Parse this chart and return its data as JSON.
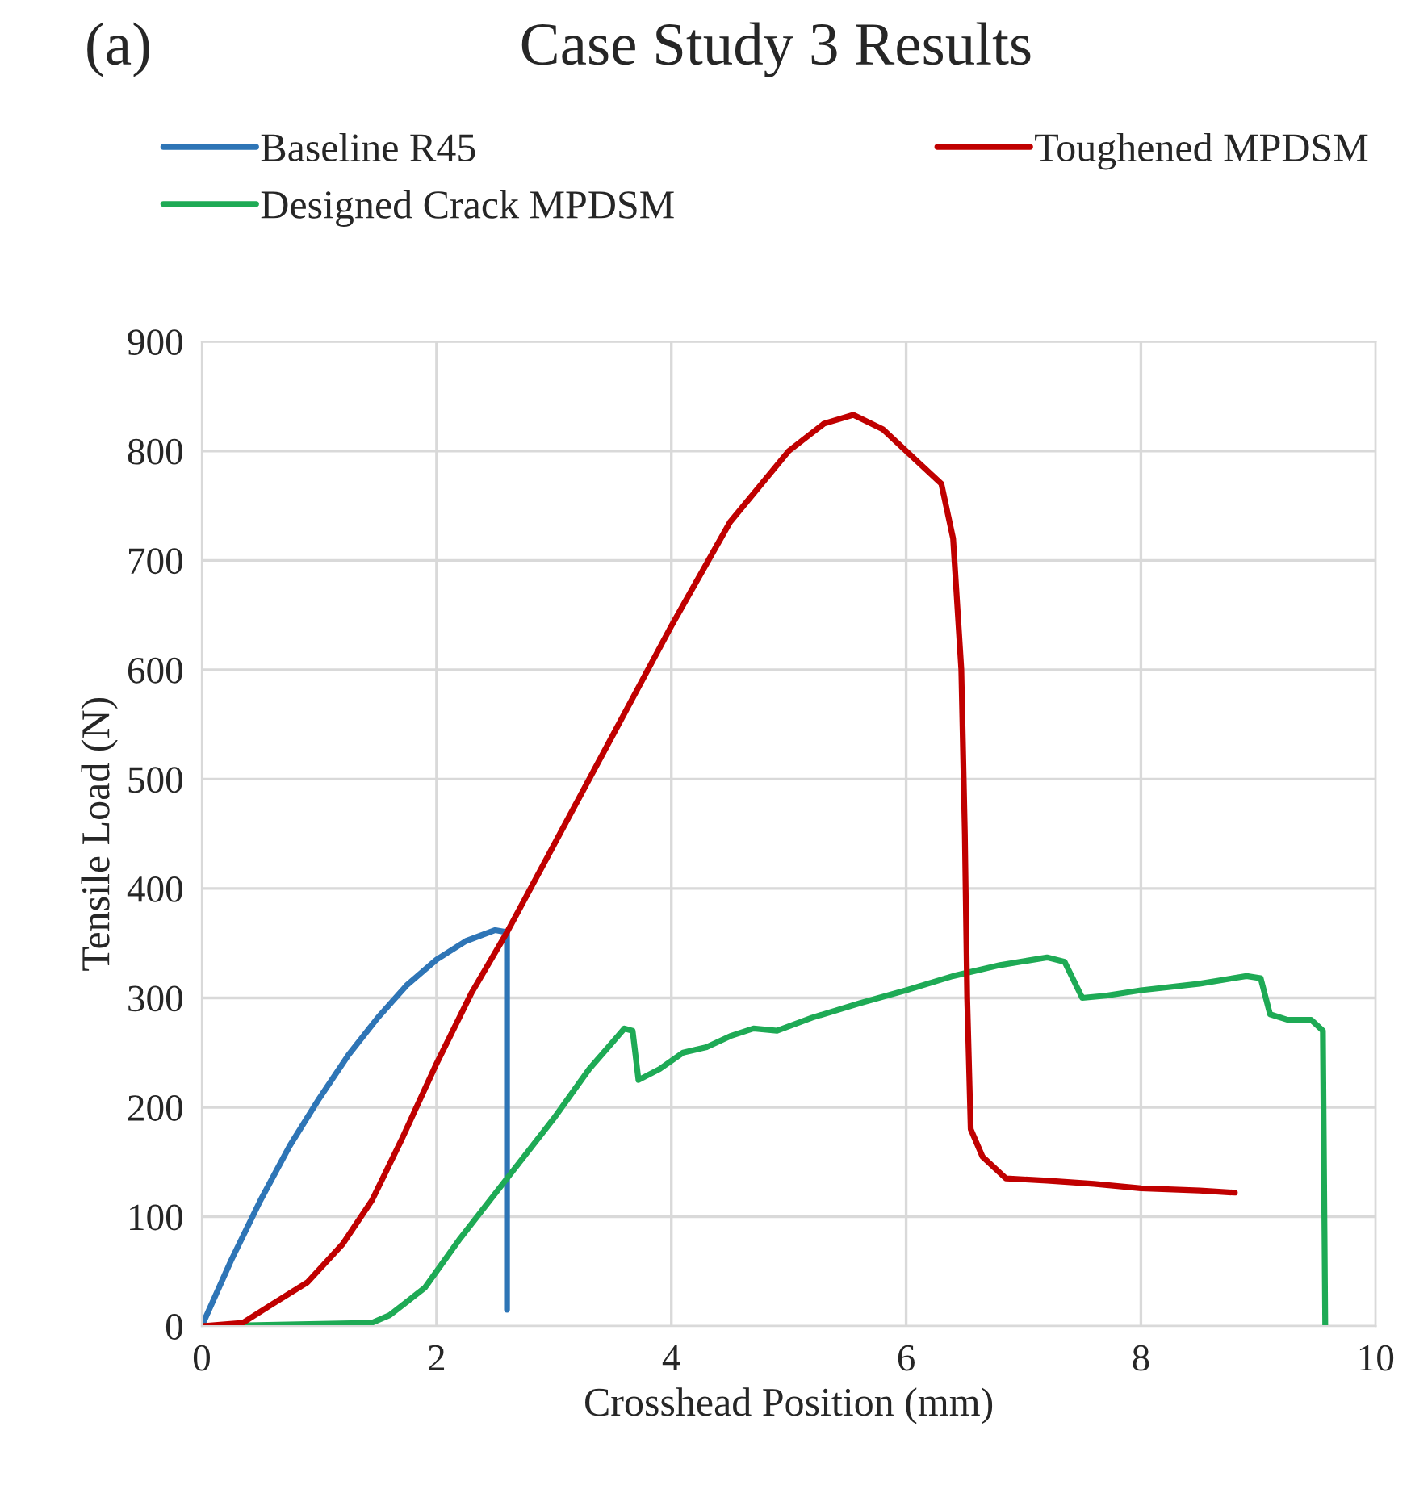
{
  "chart_data": {
    "type": "line",
    "title": "Case Study 3 Results",
    "xlabel": "Crosshead Position (mm)",
    "ylabel": "Tensile Load (N)",
    "annotations": [
      "(a)"
    ],
    "series": [
      {
        "name": "Baseline R45",
        "color": "#2e75b6",
        "x": [
          0,
          0.25,
          0.5,
          0.75,
          1,
          1.25,
          1.5,
          1.75,
          2,
          2.25,
          2.5,
          2.6,
          2.6
        ],
        "values": [
          0,
          60,
          115,
          165,
          208,
          248,
          282,
          312,
          335,
          352,
          362,
          360,
          15
        ]
      },
      {
        "name": "Designed Crack MPDSM",
        "color": "#1eaa55",
        "x": [
          0,
          1.45,
          1.6,
          1.9,
          2.2,
          2.6,
          3,
          3.3,
          3.6,
          3.67,
          3.72,
          3.9,
          4.1,
          4.3,
          4.5,
          4.7,
          4.9,
          5.2,
          5.6,
          6,
          6.4,
          6.8,
          7.2,
          7.35,
          7.5,
          7.7,
          8,
          8.5,
          8.9,
          9.02,
          9.1,
          9.25,
          9.45,
          9.55,
          9.57
        ],
        "values": [
          0,
          3,
          10,
          35,
          80,
          135,
          190,
          235,
          272,
          270,
          225,
          235,
          250,
          255,
          265,
          272,
          270,
          282,
          295,
          307,
          320,
          330,
          337,
          333,
          300,
          302,
          307,
          313,
          320,
          318,
          285,
          280,
          280,
          270,
          0
        ]
      },
      {
        "name": "Toughened MPDSM",
        "color": "#c00000",
        "x": [
          0,
          0.35,
          0.6,
          0.9,
          1.2,
          1.45,
          1.7,
          2,
          2.3,
          2.6,
          3,
          3.5,
          4,
          4.5,
          5,
          5.3,
          5.55,
          5.8,
          6.1,
          6.3,
          6.4,
          6.47,
          6.5,
          6.52,
          6.55,
          6.65,
          6.85,
          7.2,
          7.6,
          8,
          8.5,
          8.8
        ],
        "values": [
          0,
          3,
          20,
          40,
          75,
          115,
          170,
          240,
          305,
          360,
          440,
          540,
          640,
          735,
          800,
          825,
          833,
          820,
          790,
          770,
          720,
          600,
          450,
          300,
          180,
          155,
          135,
          133,
          130,
          126,
          124,
          122
        ]
      }
    ],
    "xlim": [
      0,
      10
    ],
    "xticks": [
      0,
      2,
      4,
      6,
      8,
      10
    ],
    "ylim": [
      0,
      900
    ],
    "yticks": [
      0,
      100,
      200,
      300,
      400,
      500,
      600,
      700,
      800,
      900
    ],
    "grid": true,
    "legend": "top",
    "marker": "none",
    "line_style": "solid"
  }
}
